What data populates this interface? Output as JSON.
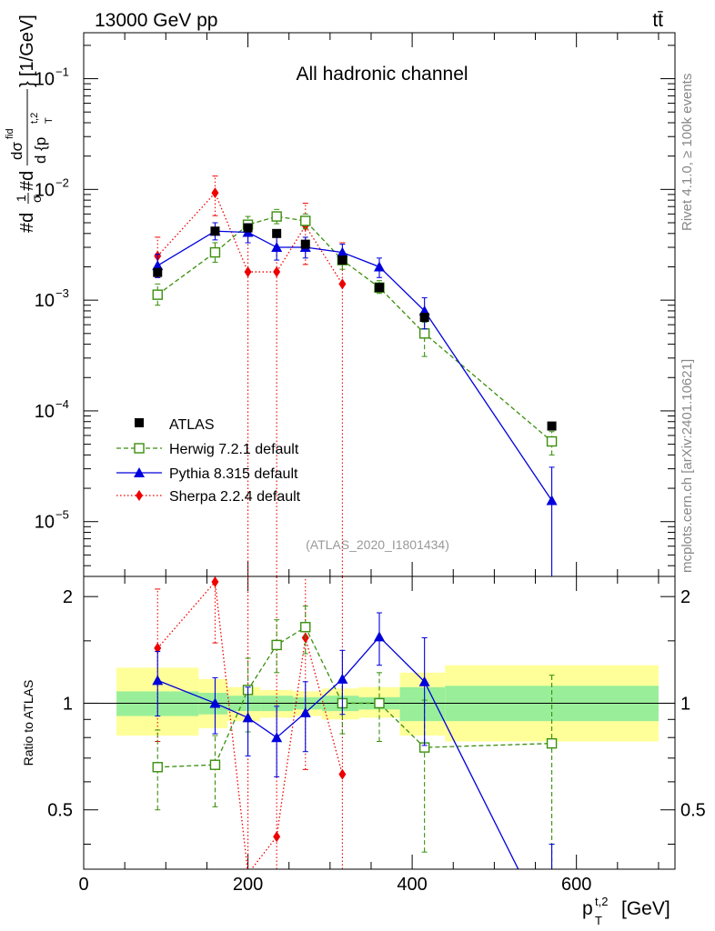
{
  "header": {
    "left": "13000 GeV pp",
    "right": "tt̄"
  },
  "side_labels": {
    "rivet": "Rivet 4.1.0, ≥ 100k events",
    "site": "mcplots.cern.ch [arXiv:2401.10621]"
  },
  "chart_data": [
    {
      "type": "line",
      "panel": "main",
      "title": "All hadronic channel",
      "watermark": "(ATLAS_2020_I1801434)",
      "ylabel": "#d1/σ#d dσ^{fid}/d{p_T^{t,2}} [1/GeV]",
      "ylabel_parts": {
        "prefix": "#d",
        "frac1_num": "1",
        "frac1_den": "σ",
        "mid": "#d",
        "frac2_num": "dσ",
        "frac2_num_sup": "fid",
        "frac2_den": "d {p",
        "frac2_den_sup": "t,2",
        "frac2_den_sub": "T",
        "close": "}",
        "unit": "[1/GeV]"
      },
      "yscale": "log",
      "ylim": [
        3.2e-06,
        0.26
      ],
      "xlim": [
        0,
        720
      ],
      "yticks": [
        {
          "value": 0.1,
          "base": "10",
          "exp": "−1"
        },
        {
          "value": 0.01,
          "base": "10",
          "exp": "−2"
        },
        {
          "value": 0.001,
          "base": "10",
          "exp": "−3"
        },
        {
          "value": 0.0001,
          "base": "10",
          "exp": "−4"
        },
        {
          "value": 1e-05,
          "base": "10",
          "exp": "−5"
        }
      ],
      "series": [
        {
          "name": "ATLAS",
          "color": "#000000",
          "marker": "square-filled",
          "line": "none",
          "x": [
            90,
            160,
            200,
            235,
            270,
            315,
            360,
            415,
            570
          ],
          "y": [
            0.00178,
            0.0042,
            0.0045,
            0.004,
            0.0032,
            0.0023,
            0.0013,
            0.0007,
            7.3e-05
          ]
        },
        {
          "name": "Herwig 7.2.1 default",
          "color": "#3a8f0e",
          "marker": "square-open",
          "line": "dashed",
          "x": [
            90,
            160,
            200,
            235,
            270,
            315,
            360,
            415,
            570
          ],
          "y": [
            0.00112,
            0.0027,
            0.0048,
            0.0057,
            0.0052,
            0.0023,
            0.0013,
            0.0005,
            5.3e-05
          ],
          "err_lo": [
            0.0009,
            0.0022,
            0.004,
            0.0049,
            0.0044,
            0.0019,
            0.00115,
            0.00031,
            4e-05
          ],
          "err_hi": [
            0.0014,
            0.0033,
            0.0057,
            0.0066,
            0.006,
            0.0027,
            0.0015,
            0.00063,
            6.5e-05
          ]
        },
        {
          "name": "Pythia 8.315 default",
          "color": "#0000dd",
          "marker": "triangle",
          "line": "solid",
          "x": [
            90,
            160,
            200,
            235,
            270,
            315,
            360,
            415,
            570
          ],
          "y": [
            0.00205,
            0.0042,
            0.0041,
            0.003,
            0.003,
            0.0027,
            0.002,
            0.0008,
            1.55e-05
          ],
          "err_lo": [
            0.0016,
            0.0035,
            0.0033,
            0.0023,
            0.0024,
            0.0022,
            0.0016,
            0.00055,
            2.5e-06
          ],
          "err_hi": [
            0.0026,
            0.005,
            0.0049,
            0.0038,
            0.0037,
            0.0032,
            0.0024,
            0.00105,
            3.1e-05
          ]
        },
        {
          "name": "Sherpa 2.2.4 default",
          "color": "#ee0000",
          "marker": "diamond",
          "line": "dotted",
          "x": [
            90,
            160,
            200,
            235,
            270,
            315
          ],
          "y": [
            0.0025,
            0.0093,
            0.0018,
            0.0018,
            0.0047,
            0.0014
          ],
          "err_lo": [
            0.0016,
            0.0058,
            1e-07,
            1e-07,
            0.0021,
            1e-07
          ],
          "err_hi": [
            0.0037,
            0.0132,
            0.0038,
            0.004,
            0.0075,
            0.0033
          ]
        }
      ]
    },
    {
      "type": "line",
      "panel": "ratio",
      "ylabel": "Ratio to ATLAS",
      "xlabel": "p_T^{t,2} [GeV]",
      "xlabel_parts": {
        "base": "p",
        "sub": "T",
        "sup": "t,2",
        "unit": "[GeV]"
      },
      "xlim": [
        0,
        720
      ],
      "ylim": [
        0.34,
        2.28
      ],
      "reference_line": 1,
      "xticks": [
        {
          "value": 0,
          "label": "0"
        },
        {
          "value": 200,
          "label": "200"
        },
        {
          "value": 400,
          "label": "400"
        },
        {
          "value": 600,
          "label": "600"
        }
      ],
      "yticks": [
        {
          "value": 0.5,
          "label": "0.5"
        },
        {
          "value": 1,
          "label": "1"
        },
        {
          "value": 2,
          "label": "2"
        }
      ],
      "uncertainty_bands": [
        {
          "x0": 40,
          "x1": 140,
          "stat_lo": 0.92,
          "stat_hi": 1.08,
          "tot_lo": 0.81,
          "tot_hi": 1.26
        },
        {
          "x0": 140,
          "x1": 175,
          "stat_lo": 0.93,
          "stat_hi": 1.07,
          "tot_lo": 0.85,
          "tot_hi": 1.17
        },
        {
          "x0": 175,
          "x1": 215,
          "stat_lo": 0.95,
          "stat_hi": 1.05,
          "tot_lo": 0.89,
          "tot_hi": 1.11
        },
        {
          "x0": 215,
          "x1": 255,
          "stat_lo": 0.95,
          "stat_hi": 1.05,
          "tot_lo": 0.91,
          "tot_hi": 1.09
        },
        {
          "x0": 255,
          "x1": 290,
          "stat_lo": 0.96,
          "stat_hi": 1.04,
          "tot_lo": 0.92,
          "tot_hi": 1.08
        },
        {
          "x0": 290,
          "x1": 335,
          "stat_lo": 0.95,
          "stat_hi": 1.05,
          "tot_lo": 0.9,
          "tot_hi": 1.1
        },
        {
          "x0": 335,
          "x1": 385,
          "stat_lo": 0.96,
          "stat_hi": 1.04,
          "tot_lo": 0.91,
          "tot_hi": 1.11
        },
        {
          "x0": 385,
          "x1": 440,
          "stat_lo": 0.89,
          "stat_hi": 1.11,
          "tot_lo": 0.81,
          "tot_hi": 1.22
        },
        {
          "x0": 440,
          "x1": 700,
          "stat_lo": 0.89,
          "stat_hi": 1.12,
          "tot_lo": 0.78,
          "tot_hi": 1.28
        }
      ],
      "series": [
        {
          "name": "Herwig 7.2.1 default",
          "color": "#3a8f0e",
          "marker": "square-open",
          "line": "dashed",
          "x": [
            90,
            160,
            200,
            235,
            270,
            315,
            360,
            415,
            570
          ],
          "y": [
            0.66,
            0.67,
            1.09,
            1.46,
            1.64,
            1.0,
            1.0,
            0.75,
            0.77
          ],
          "err_lo": [
            0.5,
            0.51,
            0.83,
            1.22,
            1.38,
            0.82,
            0.78,
            0.38,
            0.3
          ],
          "err_hi": [
            0.84,
            0.81,
            1.34,
            1.72,
            1.88,
            1.16,
            1.22,
            1.02,
            1.2
          ]
        },
        {
          "name": "Pythia 8.315 default",
          "color": "#0000dd",
          "marker": "triangle",
          "line": "solid",
          "x": [
            90,
            160,
            200,
            235,
            270,
            315,
            360,
            415,
            570
          ],
          "y": [
            1.16,
            1.0,
            0.91,
            0.8,
            0.94,
            1.17,
            1.54,
            1.15,
            0.22
          ],
          "err_lo": [
            0.92,
            0.82,
            0.71,
            0.62,
            0.73,
            0.93,
            1.28,
            0.76,
            0.05
          ],
          "err_hi": [
            1.4,
            1.18,
            1.11,
            0.98,
            1.15,
            1.41,
            1.8,
            1.53,
            0.4
          ]
        },
        {
          "name": "Sherpa 2.2.4 default",
          "color": "#ee0000",
          "marker": "diamond",
          "line": "dotted",
          "x": [
            90,
            160,
            200,
            235,
            270,
            315
          ],
          "y": [
            1.43,
            2.2,
            0.33,
            0.42,
            1.53,
            0.63
          ],
          "err_lo": [
            0.78,
            1.48,
            0.2,
            0.2,
            0.65,
            0.2
          ],
          "err_hi": [
            2.1,
            2.3,
            2.3,
            2.3,
            2.3,
            2.3
          ]
        }
      ]
    }
  ]
}
